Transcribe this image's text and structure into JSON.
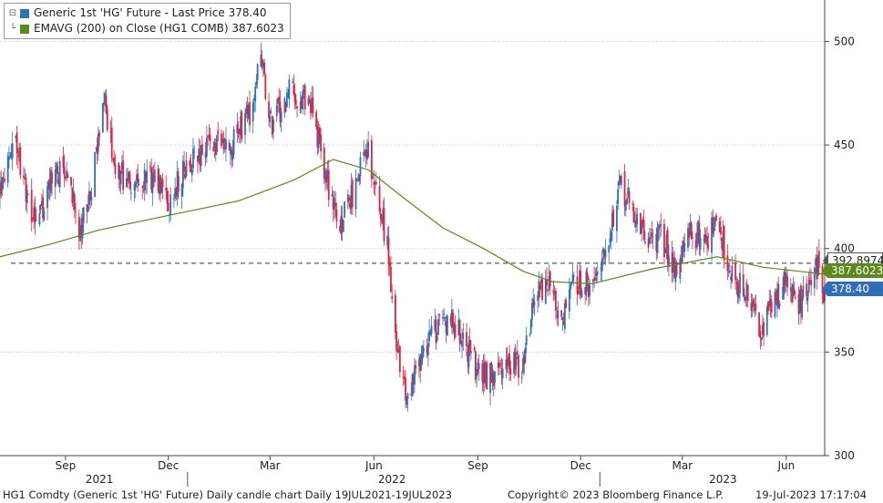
{
  "legend": {
    "items": [
      {
        "label": "Generic 1st 'HG' Future - Last Price 378.40",
        "color": "#2e6fb7"
      },
      {
        "label": "EMAVG (200)  on Close (HG1 COMB)  387.6023",
        "color": "#5c8a18"
      }
    ]
  },
  "price_tags": {
    "dashed_level": "392.8974",
    "ema": "387.6023",
    "last": "378.40"
  },
  "footer": {
    "description": "HG1 Comdty (Generic 1st 'HG' Future) Daily candle chart  Daily 19JUL2021-19JUL2023",
    "copyright": "Copyright© 2023 Bloomberg Finance L.P.",
    "timestamp": "19-Jul-2023 17:17:04"
  },
  "chart_data": {
    "type": "candlestick",
    "title": "",
    "xlabel": "",
    "ylabel": "",
    "ylim": [
      300,
      520
    ],
    "y_ticks": [
      300,
      350,
      400,
      450,
      500
    ],
    "x_range": [
      "2021-07-19",
      "2023-07-19"
    ],
    "month_ticks": [
      {
        "label": "Sep",
        "date": "2021-09-15"
      },
      {
        "label": "Dec",
        "date": "2021-12-15"
      },
      {
        "label": "Mar",
        "date": "2022-03-15"
      },
      {
        "label": "Jun",
        "date": "2022-06-15"
      },
      {
        "label": "Sep",
        "date": "2022-09-15"
      },
      {
        "label": "Dec",
        "date": "2022-12-15"
      },
      {
        "label": "Mar",
        "date": "2023-03-15"
      },
      {
        "label": "Jun",
        "date": "2023-06-15"
      }
    ],
    "year_labels": [
      {
        "label": "2021",
        "date": "2021-10-15"
      },
      {
        "label": "2022",
        "date": "2022-07-01"
      },
      {
        "label": "2023",
        "date": "2023-04-20"
      }
    ],
    "year_separators": [
      "2022-01-01",
      "2023-01-01"
    ],
    "grid": true,
    "reference_line": 392.8974,
    "series": [
      {
        "name": "Generic 1st 'HG' Future - Last Price",
        "kind": "candle",
        "up_color": "#2e6fb7",
        "down_color": "#e8203a",
        "closes": [
          {
            "date": "2021-07-19",
            "value": 427
          },
          {
            "date": "2021-08-01",
            "value": 450
          },
          {
            "date": "2021-08-20",
            "value": 410
          },
          {
            "date": "2021-09-01",
            "value": 432
          },
          {
            "date": "2021-09-15",
            "value": 438
          },
          {
            "date": "2021-09-28",
            "value": 408
          },
          {
            "date": "2021-10-08",
            "value": 425
          },
          {
            "date": "2021-10-18",
            "value": 475
          },
          {
            "date": "2021-10-29",
            "value": 440
          },
          {
            "date": "2021-11-15",
            "value": 428
          },
          {
            "date": "2021-12-01",
            "value": 435
          },
          {
            "date": "2021-12-15",
            "value": 420
          },
          {
            "date": "2022-01-01",
            "value": 442
          },
          {
            "date": "2022-01-20",
            "value": 448
          },
          {
            "date": "2022-02-10",
            "value": 450
          },
          {
            "date": "2022-02-25",
            "value": 465
          },
          {
            "date": "2022-03-07",
            "value": 495
          },
          {
            "date": "2022-03-15",
            "value": 460
          },
          {
            "date": "2022-04-01",
            "value": 475
          },
          {
            "date": "2022-04-20",
            "value": 472
          },
          {
            "date": "2022-05-01",
            "value": 440
          },
          {
            "date": "2022-05-15",
            "value": 410
          },
          {
            "date": "2022-05-31",
            "value": 432
          },
          {
            "date": "2022-06-08",
            "value": 450
          },
          {
            "date": "2022-06-18",
            "value": 430
          },
          {
            "date": "2022-06-27",
            "value": 400
          },
          {
            "date": "2022-07-06",
            "value": 350
          },
          {
            "date": "2022-07-15",
            "value": 325
          },
          {
            "date": "2022-07-25",
            "value": 345
          },
          {
            "date": "2022-08-10",
            "value": 362
          },
          {
            "date": "2022-08-25",
            "value": 365
          },
          {
            "date": "2022-09-10",
            "value": 345
          },
          {
            "date": "2022-09-25",
            "value": 338
          },
          {
            "date": "2022-10-10",
            "value": 342
          },
          {
            "date": "2022-10-25",
            "value": 345
          },
          {
            "date": "2022-11-05",
            "value": 375
          },
          {
            "date": "2022-11-15",
            "value": 385
          },
          {
            "date": "2022-11-28",
            "value": 362
          },
          {
            "date": "2022-12-10",
            "value": 385
          },
          {
            "date": "2022-12-25",
            "value": 382
          },
          {
            "date": "2023-01-10",
            "value": 410
          },
          {
            "date": "2023-01-20",
            "value": 430
          },
          {
            "date": "2023-02-10",
            "value": 405
          },
          {
            "date": "2023-02-25",
            "value": 405
          },
          {
            "date": "2023-03-10",
            "value": 390
          },
          {
            "date": "2023-03-22",
            "value": 408
          },
          {
            "date": "2023-04-05",
            "value": 405
          },
          {
            "date": "2023-04-15",
            "value": 412
          },
          {
            "date": "2023-04-28",
            "value": 388
          },
          {
            "date": "2023-05-10",
            "value": 378
          },
          {
            "date": "2023-05-24",
            "value": 362
          },
          {
            "date": "2023-06-05",
            "value": 375
          },
          {
            "date": "2023-06-15",
            "value": 385
          },
          {
            "date": "2023-06-25",
            "value": 372
          },
          {
            "date": "2023-07-05",
            "value": 380
          },
          {
            "date": "2023-07-12",
            "value": 392
          },
          {
            "date": "2023-07-19",
            "value": 378.4
          }
        ]
      },
      {
        "name": "EMAVG (200) on Close (HG1 COMB)",
        "kind": "line",
        "color": "#5c8a18",
        "points": [
          {
            "date": "2021-07-19",
            "value": 396
          },
          {
            "date": "2021-09-01",
            "value": 402
          },
          {
            "date": "2021-10-15",
            "value": 409
          },
          {
            "date": "2021-12-15",
            "value": 416
          },
          {
            "date": "2022-02-15",
            "value": 423
          },
          {
            "date": "2022-04-05",
            "value": 433
          },
          {
            "date": "2022-05-10",
            "value": 443
          },
          {
            "date": "2022-06-10",
            "value": 438
          },
          {
            "date": "2022-07-10",
            "value": 425
          },
          {
            "date": "2022-08-15",
            "value": 410
          },
          {
            "date": "2022-09-20",
            "value": 400
          },
          {
            "date": "2022-10-25",
            "value": 389
          },
          {
            "date": "2022-11-20",
            "value": 384
          },
          {
            "date": "2022-12-25",
            "value": 383
          },
          {
            "date": "2023-02-15",
            "value": 390
          },
          {
            "date": "2023-04-15",
            "value": 396
          },
          {
            "date": "2023-05-25",
            "value": 391
          },
          {
            "date": "2023-07-19",
            "value": 387.6023
          }
        ]
      }
    ]
  }
}
